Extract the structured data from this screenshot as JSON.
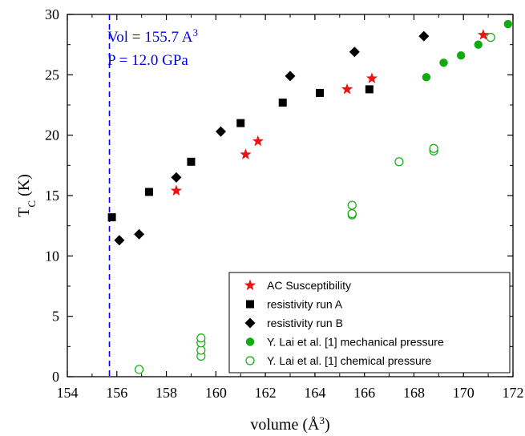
{
  "chart_data": {
    "type": "scatter",
    "xlabel": "volume (Å",
    "xlabel_sup": "3",
    "xlabel_tail": ")",
    "ylabel_main": "T",
    "ylabel_sub": "C",
    "ylabel_tail": " (K)",
    "xlim": [
      154,
      172
    ],
    "ylim": [
      0,
      30
    ],
    "xticks": [
      154,
      156,
      158,
      160,
      162,
      164,
      166,
      168,
      170,
      172
    ],
    "yticks": [
      0,
      5,
      10,
      15,
      20,
      25,
      30
    ],
    "grid": false,
    "legend_position": "bottom-right",
    "annotation": {
      "vline_x": 155.7,
      "line1": "Vol = 155.7 A",
      "line1_sup": "3",
      "line2": "P = 12.0 GPa",
      "color": "#0000ee"
    },
    "series": [
      {
        "name": "AC Susceptibility",
        "marker": "star",
        "color": "#ee1111",
        "points": [
          [
            158.4,
            15.4
          ],
          [
            161.2,
            18.4
          ],
          [
            161.7,
            19.5
          ],
          [
            165.3,
            23.8
          ],
          [
            166.3,
            24.7
          ],
          [
            170.8,
            28.3
          ]
        ]
      },
      {
        "name": "resistivity run A",
        "marker": "square",
        "color": "#000000",
        "points": [
          [
            155.8,
            13.2
          ],
          [
            157.3,
            15.3
          ],
          [
            159.0,
            17.8
          ],
          [
            161.0,
            21.0
          ],
          [
            162.7,
            22.7
          ],
          [
            164.2,
            23.5
          ],
          [
            166.2,
            23.8
          ]
        ]
      },
      {
        "name": "resistivity run B",
        "marker": "diamond",
        "color": "#000000",
        "points": [
          [
            156.1,
            11.3
          ],
          [
            156.9,
            11.8
          ],
          [
            158.4,
            16.5
          ],
          [
            160.2,
            20.3
          ],
          [
            163.0,
            24.9
          ],
          [
            165.6,
            26.9
          ],
          [
            168.4,
            28.2
          ]
        ]
      },
      {
        "name": "Y. Lai et al. [1] mechanical pressure",
        "marker": "circle-filled",
        "color": "#11aa11",
        "points": [
          [
            168.5,
            24.8
          ],
          [
            169.2,
            26.0
          ],
          [
            169.9,
            26.6
          ],
          [
            170.6,
            27.5
          ],
          [
            171.8,
            29.2
          ]
        ]
      },
      {
        "name": "Y. Lai et al. [1] chemical pressure",
        "marker": "circle-open",
        "color": "#11aa11",
        "points": [
          [
            156.9,
            0.6
          ],
          [
            159.4,
            1.7
          ],
          [
            159.4,
            2.2
          ],
          [
            159.4,
            2.8
          ],
          [
            159.4,
            3.2
          ],
          [
            165.5,
            13.4
          ],
          [
            165.5,
            13.5
          ],
          [
            165.5,
            14.2
          ],
          [
            167.4,
            17.8
          ],
          [
            168.8,
            18.7
          ],
          [
            168.8,
            18.9
          ],
          [
            171.1,
            28.1
          ]
        ]
      }
    ]
  }
}
